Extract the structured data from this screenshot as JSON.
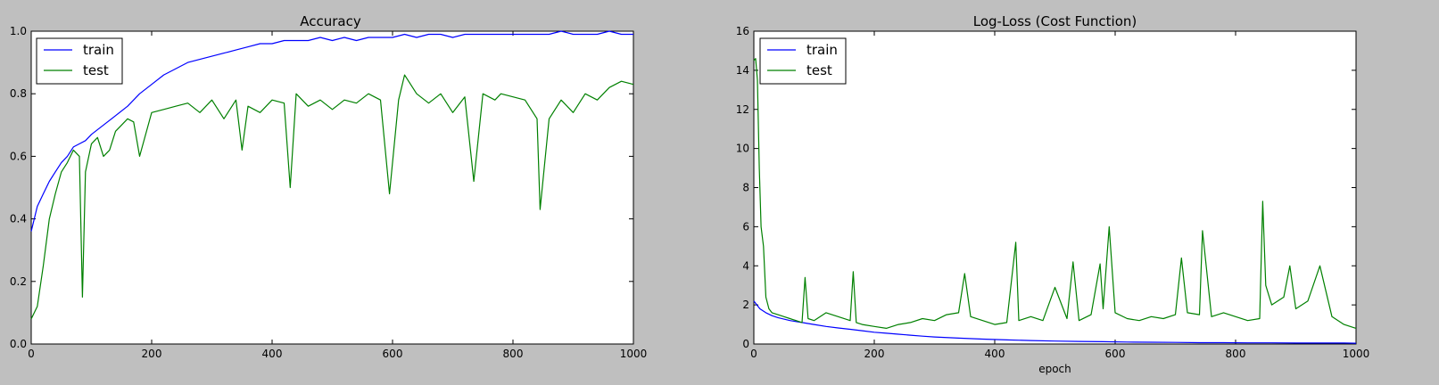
{
  "chart_data": [
    {
      "type": "line",
      "title": "Accuracy",
      "xlabel": "",
      "ylabel": "",
      "xlim": [
        0,
        1000
      ],
      "ylim": [
        0.0,
        1.0
      ],
      "xticks": [
        0,
        200,
        400,
        600,
        800,
        1000
      ],
      "yticks": [
        0.0,
        0.2,
        0.4,
        0.6,
        0.8,
        1.0
      ],
      "xtick_labels": [
        "0",
        "200",
        "400",
        "600",
        "800",
        "1000"
      ],
      "ytick_labels": [
        "0.0",
        "0.2",
        "0.4",
        "0.6",
        "0.8",
        "1.0"
      ],
      "grid": false,
      "legend_position": "top-left",
      "series": [
        {
          "name": "train",
          "color": "#0000ff",
          "x": [
            0,
            10,
            20,
            30,
            40,
            50,
            60,
            70,
            80,
            90,
            100,
            120,
            140,
            160,
            180,
            200,
            220,
            240,
            260,
            280,
            300,
            320,
            340,
            360,
            380,
            400,
            420,
            440,
            460,
            480,
            500,
            520,
            540,
            560,
            580,
            600,
            620,
            640,
            660,
            680,
            700,
            720,
            740,
            760,
            780,
            800,
            820,
            840,
            860,
            880,
            900,
            920,
            940,
            960,
            980,
            1000
          ],
          "y": [
            0.36,
            0.44,
            0.48,
            0.52,
            0.55,
            0.58,
            0.6,
            0.63,
            0.64,
            0.65,
            0.67,
            0.7,
            0.73,
            0.76,
            0.8,
            0.83,
            0.86,
            0.88,
            0.9,
            0.91,
            0.92,
            0.93,
            0.94,
            0.95,
            0.96,
            0.96,
            0.97,
            0.97,
            0.97,
            0.98,
            0.97,
            0.98,
            0.97,
            0.98,
            0.98,
            0.98,
            0.99,
            0.98,
            0.99,
            0.99,
            0.98,
            0.99,
            0.99,
            0.99,
            0.99,
            0.99,
            0.99,
            0.99,
            0.99,
            1.0,
            0.99,
            0.99,
            0.99,
            1.0,
            0.99,
            0.99
          ]
        },
        {
          "name": "test",
          "color": "#008000",
          "x": [
            0,
            5,
            10,
            20,
            30,
            40,
            50,
            60,
            70,
            80,
            85,
            90,
            100,
            110,
            120,
            130,
            140,
            150,
            160,
            170,
            180,
            200,
            220,
            240,
            260,
            280,
            300,
            320,
            340,
            350,
            360,
            380,
            400,
            420,
            430,
            440,
            460,
            480,
            500,
            520,
            540,
            560,
            580,
            595,
            610,
            620,
            640,
            660,
            680,
            700,
            720,
            735,
            750,
            770,
            780,
            800,
            820,
            840,
            845,
            860,
            880,
            900,
            920,
            940,
            960,
            980,
            1000
          ],
          "y": [
            0.08,
            0.1,
            0.12,
            0.25,
            0.4,
            0.48,
            0.55,
            0.58,
            0.62,
            0.6,
            0.15,
            0.55,
            0.64,
            0.66,
            0.6,
            0.62,
            0.68,
            0.7,
            0.72,
            0.71,
            0.6,
            0.74,
            0.75,
            0.76,
            0.77,
            0.74,
            0.78,
            0.72,
            0.78,
            0.62,
            0.76,
            0.74,
            0.78,
            0.77,
            0.5,
            0.8,
            0.76,
            0.78,
            0.75,
            0.78,
            0.77,
            0.8,
            0.78,
            0.48,
            0.78,
            0.86,
            0.8,
            0.77,
            0.8,
            0.74,
            0.79,
            0.52,
            0.8,
            0.78,
            0.8,
            0.79,
            0.78,
            0.72,
            0.43,
            0.72,
            0.78,
            0.74,
            0.8,
            0.78,
            0.82,
            0.84,
            0.83
          ]
        }
      ]
    },
    {
      "type": "line",
      "title": "Log-Loss (Cost Function)",
      "xlabel": "epoch",
      "ylabel": "",
      "xlim": [
        0,
        1000
      ],
      "ylim": [
        0,
        16
      ],
      "xticks": [
        0,
        200,
        400,
        600,
        800,
        1000
      ],
      "yticks": [
        0,
        2,
        4,
        6,
        8,
        10,
        12,
        14,
        16
      ],
      "xtick_labels": [
        "0",
        "200",
        "400",
        "600",
        "800",
        "1000"
      ],
      "ytick_labels": [
        "0",
        "2",
        "4",
        "6",
        "8",
        "10",
        "12",
        "14",
        "16"
      ],
      "grid": false,
      "legend_position": "top-left",
      "series": [
        {
          "name": "train",
          "color": "#0000ff",
          "x": [
            0,
            10,
            20,
            30,
            40,
            60,
            80,
            100,
            120,
            140,
            160,
            180,
            200,
            220,
            240,
            260,
            280,
            300,
            340,
            380,
            420,
            460,
            500,
            540,
            580,
            620,
            660,
            700,
            740,
            780,
            820,
            860,
            900,
            940,
            980,
            1000
          ],
          "y": [
            2.2,
            1.8,
            1.6,
            1.45,
            1.35,
            1.2,
            1.1,
            1.0,
            0.9,
            0.82,
            0.75,
            0.68,
            0.6,
            0.55,
            0.5,
            0.45,
            0.4,
            0.36,
            0.3,
            0.25,
            0.21,
            0.18,
            0.15,
            0.13,
            0.12,
            0.1,
            0.09,
            0.08,
            0.07,
            0.07,
            0.06,
            0.06,
            0.05,
            0.05,
            0.05,
            0.04
          ]
        },
        {
          "name": "test",
          "color": "#008000",
          "x": [
            0,
            3,
            6,
            9,
            12,
            16,
            20,
            25,
            30,
            40,
            50,
            60,
            70,
            80,
            85,
            90,
            100,
            120,
            140,
            160,
            165,
            170,
            180,
            200,
            220,
            240,
            260,
            280,
            300,
            320,
            340,
            350,
            360,
            380,
            400,
            420,
            435,
            440,
            460,
            480,
            500,
            520,
            530,
            540,
            560,
            575,
            580,
            590,
            600,
            620,
            640,
            660,
            680,
            700,
            710,
            720,
            740,
            745,
            760,
            780,
            800,
            820,
            840,
            845,
            850,
            860,
            880,
            890,
            900,
            920,
            940,
            960,
            980,
            1000
          ],
          "y": [
            14.5,
            14.6,
            13.5,
            9.0,
            6.0,
            5.0,
            2.4,
            1.8,
            1.6,
            1.5,
            1.4,
            1.3,
            1.2,
            1.1,
            3.4,
            1.3,
            1.2,
            1.6,
            1.4,
            1.2,
            3.7,
            1.1,
            1.0,
            0.9,
            0.8,
            1.0,
            1.1,
            1.3,
            1.2,
            1.5,
            1.6,
            3.6,
            1.4,
            1.2,
            1.0,
            1.1,
            5.2,
            1.2,
            1.4,
            1.2,
            2.9,
            1.3,
            4.2,
            1.2,
            1.5,
            4.1,
            1.8,
            6.0,
            1.6,
            1.3,
            1.2,
            1.4,
            1.3,
            1.5,
            4.4,
            1.6,
            1.5,
            5.8,
            1.4,
            1.6,
            1.4,
            1.2,
            1.3,
            7.3,
            3.0,
            2.0,
            2.4,
            4.0,
            1.8,
            2.2,
            4.0,
            1.4,
            1.0,
            0.8
          ]
        }
      ]
    }
  ]
}
